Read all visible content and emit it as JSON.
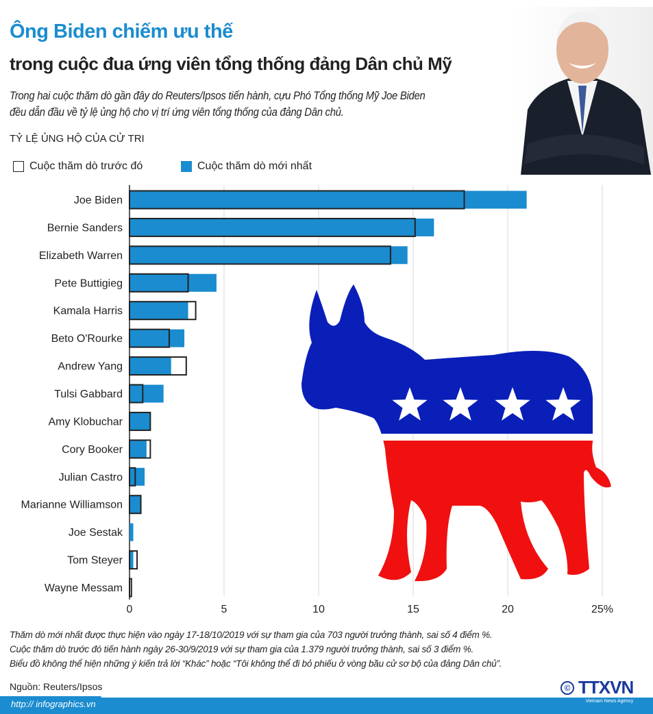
{
  "header": {
    "title": "Ông Biden chiếm ưu thế",
    "subtitle": "trong cuộc đua ứng viên tổng thống đảng Dân chủ Mỹ",
    "intro_line1": "Trong hai cuộc thăm dò gần đây do Reuters/Ipsos tiến hành, cựu Phó Tổng thống Mỹ Joe Biden",
    "intro_line2": "đều dẫn đầu về tỷ lệ ủng hộ cho vị trí ứng viên tổng thống của đảng Dân chủ."
  },
  "section_label": "TỶ LỆ ỦNG HỘ CỦA CỬ TRI",
  "colors": {
    "accent": "#1b8ccf",
    "dark": "#222222",
    "donkey_blue": "#0a1fb8",
    "donkey_red": "#f01010"
  },
  "chart_data": {
    "type": "bar",
    "orientation": "horizontal",
    "title": "TỶ LỆ ỦNG HỘ CỦA CỬ TRI",
    "xlabel": "",
    "ylabel": "",
    "xlim": [
      0,
      25
    ],
    "xticks": [
      "0",
      "5",
      "10",
      "15",
      "20",
      "25%"
    ],
    "xtick_values": [
      0,
      5,
      10,
      15,
      20,
      25
    ],
    "grid": true,
    "legend_position": "top-left",
    "categories": [
      "Joe Biden",
      "Bernie Sanders",
      "Elizabeth Warren",
      "Pete Buttigieg",
      "Kamala Harris",
      "Beto O'Rourke",
      "Andrew Yang",
      "Tulsi Gabbard",
      "Amy Klobuchar",
      "Cory Booker",
      "Julian Castro",
      "Marianne Williamson",
      "Joe Sestak",
      "Tom Steyer",
      "Wayne Messam"
    ],
    "series": [
      {
        "name": "Cuộc thăm dò trước đó",
        "style": "outline",
        "values": [
          17.7,
          15.1,
          13.8,
          3.1,
          3.5,
          2.1,
          3.0,
          0.7,
          1.1,
          1.1,
          0.3,
          0.6,
          0,
          0.4,
          0.1
        ]
      },
      {
        "name": "Cuộc thăm dò mới nhất",
        "style": "fill",
        "values": [
          21.0,
          16.1,
          14.7,
          4.6,
          3.1,
          2.9,
          2.2,
          1.8,
          1.1,
          0.9,
          0.8,
          0.6,
          0.2,
          0.2,
          0
        ]
      }
    ]
  },
  "notes": [
    "Thăm dò mới nhất được thực hiện vào ngày 17-18/10/2019 với sự tham gia của 703 người trưởng thành, sai số 4 điểm %.",
    "Cuộc thăm dò trước đó tiến hành ngày 26-30/9/2019 với sự tham gia của 1.379 người trưởng thành, sai số 3 điểm %.",
    "Biểu đồ không thể hiện những ý kiến trả lời “Khác” hoặc “Tôi không thể đi bỏ phiếu ở vòng bầu cử sơ bộ của đảng Dân chủ”."
  ],
  "source": "Nguồn: Reuters/Ipsos",
  "footer": {
    "url": "http:// infographics.vn",
    "logo_text": "TTXVN",
    "logo_sub": "Vietnam News Agency",
    "copyright": "©"
  }
}
